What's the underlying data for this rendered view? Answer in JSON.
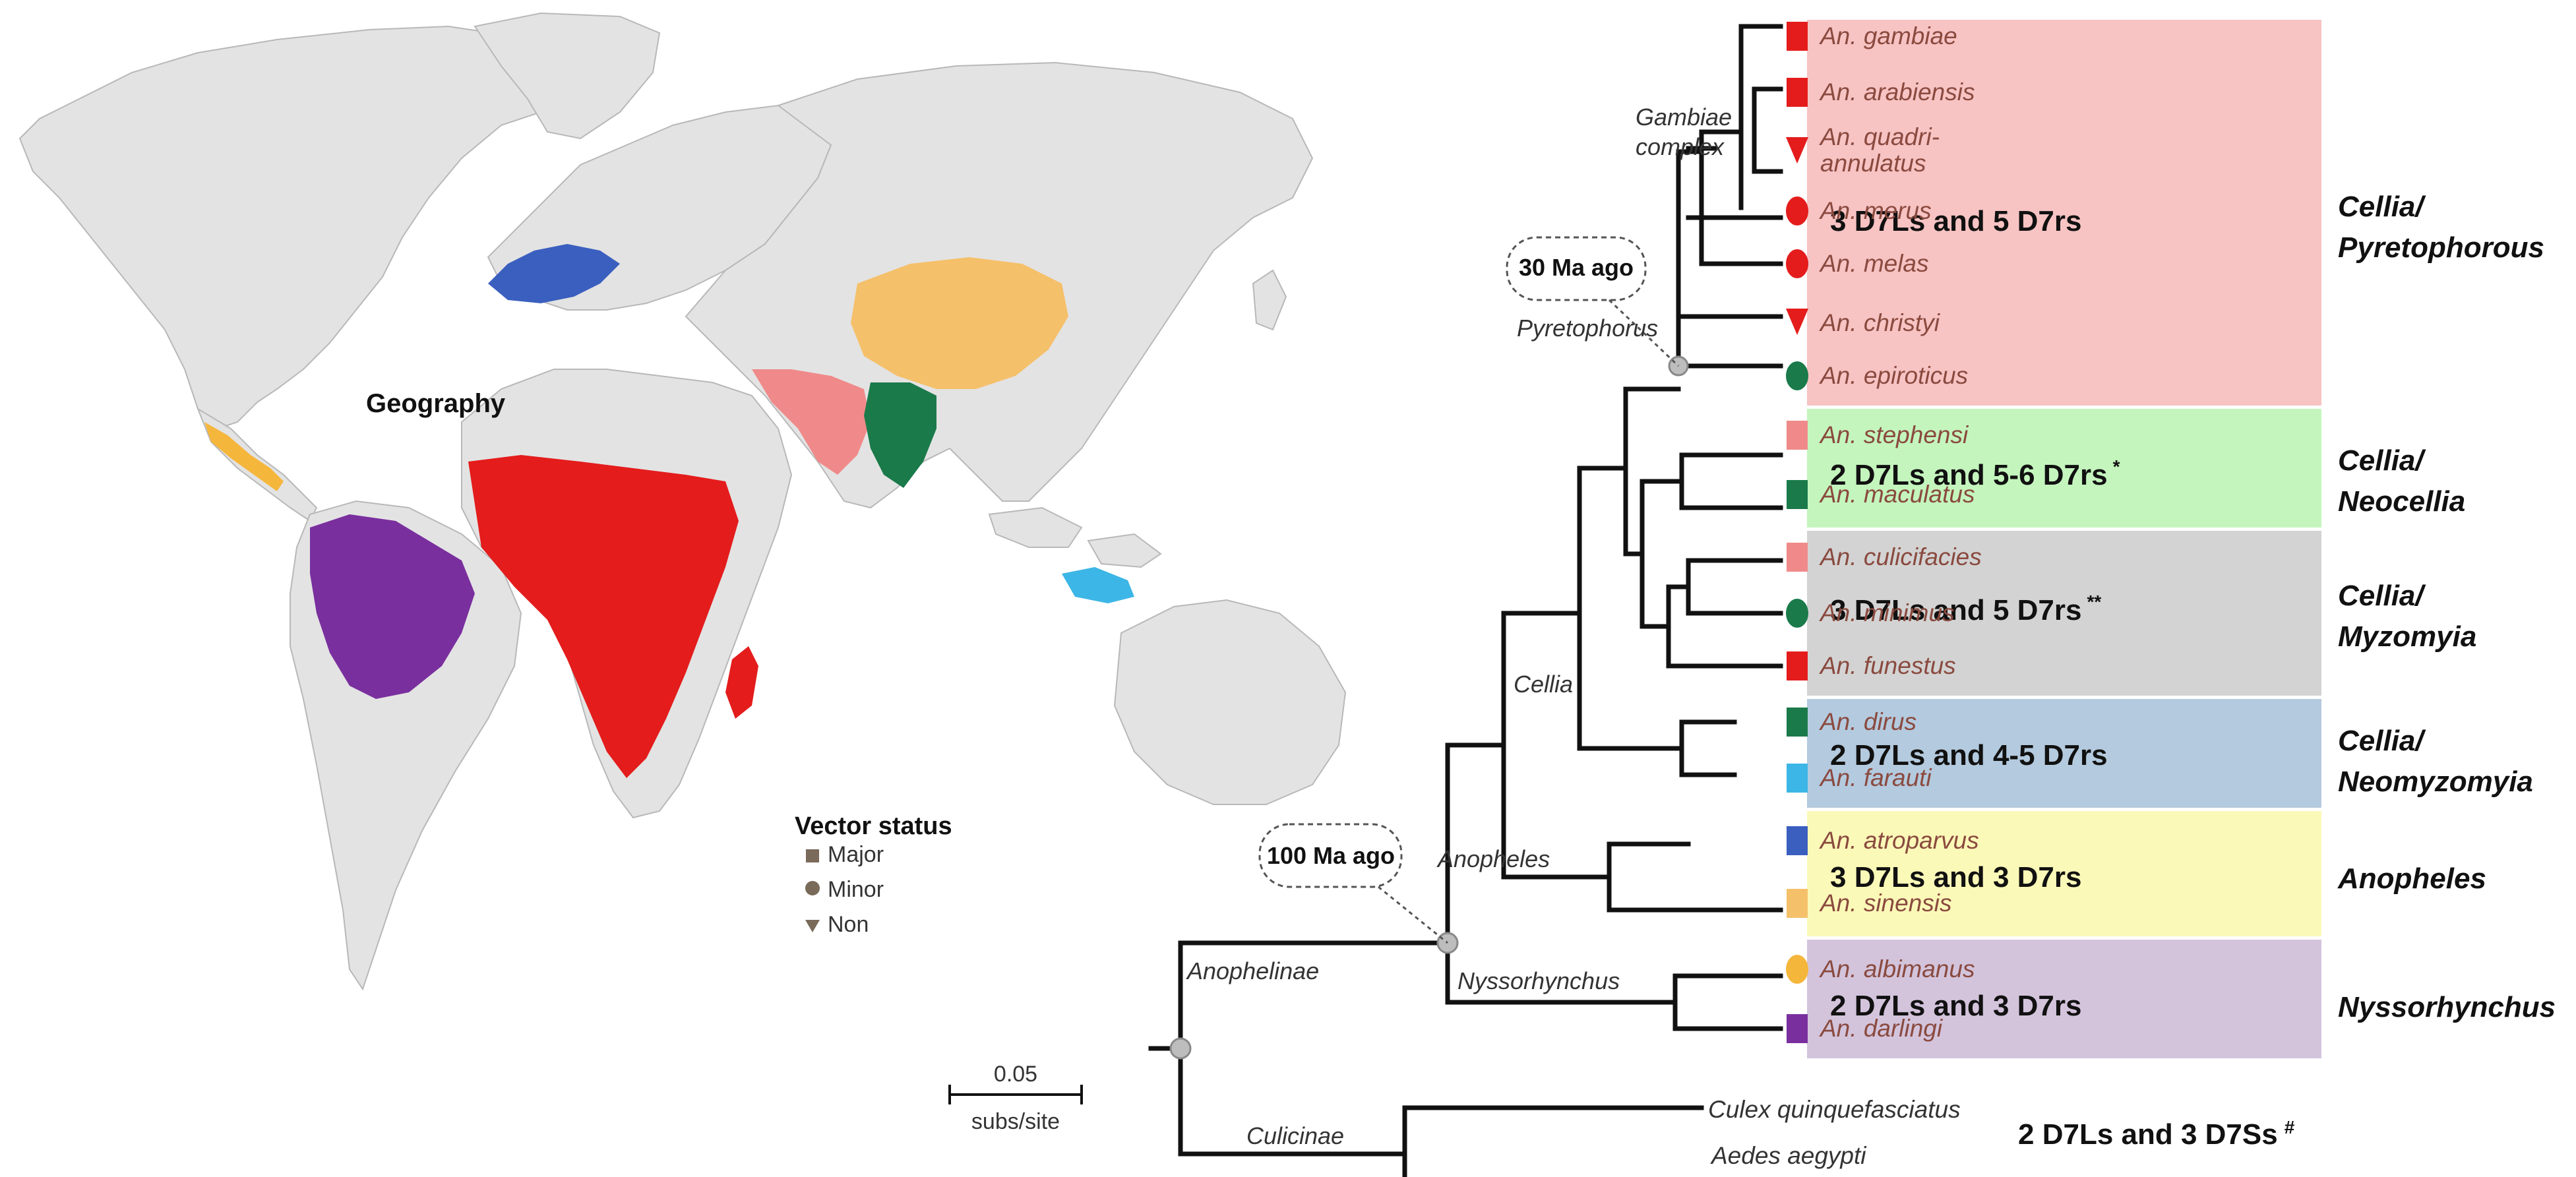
{
  "map": {
    "title": "Geography",
    "legend": {
      "title": "Vector status",
      "items": [
        {
          "shape": "square",
          "label": "Major"
        },
        {
          "shape": "circle",
          "label": "Minor"
        },
        {
          "shape": "triangle",
          "label": "Non"
        }
      ],
      "marker_color": "#7a6a5a"
    },
    "regions": [
      {
        "name": "africa",
        "color": "#e41c1c"
      },
      {
        "name": "amazon",
        "color": "#7a2f9e"
      },
      {
        "name": "central-america",
        "color": "#f5b63c"
      },
      {
        "name": "europe",
        "color": "#3a5fbf"
      },
      {
        "name": "south-asia",
        "color": "#f08a8a"
      },
      {
        "name": "east-asia",
        "color": "#f5c06a"
      },
      {
        "name": "southeast-asia",
        "color": "#1a7a4a"
      },
      {
        "name": "new-guinea",
        "color": "#3cb6e6"
      },
      {
        "name": "madagascar",
        "color": "#e41c1c"
      }
    ]
  },
  "tree": {
    "scale_bar": {
      "value": "0.05",
      "unit": "subs/site"
    },
    "dates": {
      "pyretophorus": "30 Ma ago",
      "anophelinae": "100 Ma ago"
    },
    "clade_labels": {
      "gambiae_line1": "Gambiae",
      "gambiae_line2": "complex",
      "pyretophorus": "Pyretophorus",
      "cellia": "Cellia",
      "anopheles": "Anopheles",
      "anophelinae": "Anophelinae",
      "nyssorhynchus": "Nyssorhynchus",
      "culicinae": "Culicinae"
    },
    "species": [
      {
        "label": "An. gambiae",
        "marker": "square",
        "color": "#e41c1c"
      },
      {
        "label": "An. arabiensis",
        "marker": "square",
        "color": "#e41c1c"
      },
      {
        "label": "An. quadri-",
        "label2": "annulatus",
        "marker": "triangle",
        "color": "#e41c1c"
      },
      {
        "label": "An. merus",
        "marker": "circle",
        "color": "#e41c1c"
      },
      {
        "label": "An. melas",
        "marker": "circle",
        "color": "#e41c1c"
      },
      {
        "label": "An. christyi",
        "marker": "triangle",
        "color": "#e41c1c"
      },
      {
        "label": "An. epiroticus",
        "marker": "circle",
        "color": "#1a7a4a"
      },
      {
        "label": "An. stephensi",
        "marker": "square",
        "color": "#f08a8a"
      },
      {
        "label": "An. maculatus",
        "marker": "square",
        "color": "#1a7a4a"
      },
      {
        "label": "An. culicifacies",
        "marker": "square",
        "color": "#f08a8a"
      },
      {
        "label": "An. minimus",
        "marker": "circle",
        "color": "#1a7a4a"
      },
      {
        "label": "An. funestus",
        "marker": "square",
        "color": "#e41c1c"
      },
      {
        "label": "An. dirus",
        "marker": "square",
        "color": "#1a7a4a"
      },
      {
        "label": "An. farauti",
        "marker": "square",
        "color": "#3cb6e6"
      },
      {
        "label": "An. atroparvus",
        "marker": "square",
        "color": "#3a5fbf"
      },
      {
        "label": "An. sinensis",
        "marker": "square",
        "color": "#f5c06a"
      },
      {
        "label": "An. albimanus",
        "marker": "circle",
        "color": "#f5b63c"
      },
      {
        "label": "An. darlingi",
        "marker": "square",
        "color": "#7a2f9e"
      }
    ],
    "outgroups": [
      "Culex quinquefasciatus",
      "Aedes aegypti"
    ],
    "groups": [
      {
        "text": "3 D7Ls and 5 D7rs",
        "mark": "",
        "color": "#f7c3c3",
        "subgenus": "Cellia/",
        "series": "Pyretophorous"
      },
      {
        "text": "2 D7Ls and 5-6 D7rs",
        "mark": "*",
        "color": "#c4f5bd",
        "subgenus": "Cellia/",
        "series": "Neocellia"
      },
      {
        "text": "3 D7Ls and 5 D7rs",
        "mark": "**",
        "color": "#d3d3d3",
        "subgenus": "Cellia/",
        "series": "Myzomyia"
      },
      {
        "text": "2 D7Ls and 4-5 D7rs",
        "mark": "",
        "color": "#b4cade",
        "subgenus": "Cellia/",
        "series": "Neomyzomyia"
      },
      {
        "text": "3 D7Ls and 3 D7rs",
        "mark": "",
        "color": "#fbf9b8",
        "subgenus": "Anopheles",
        "series": ""
      },
      {
        "text": "2 D7Ls and 3 D7rs",
        "mark": "",
        "color": "#d3c4dc",
        "subgenus": "Nyssorhynchus",
        "series": ""
      }
    ],
    "outgroup_note": {
      "text": "2 D7Ls and 3 D7Ss",
      "mark": "#"
    }
  }
}
